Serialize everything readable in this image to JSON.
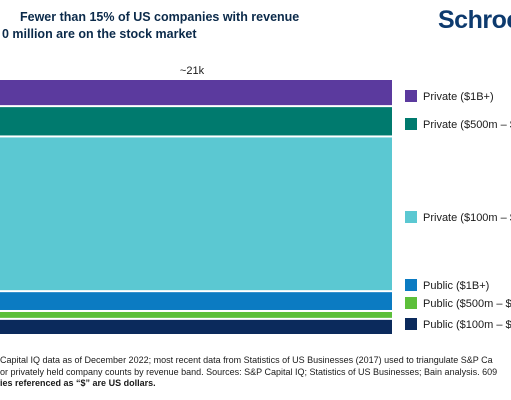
{
  "header": {
    "title_line1": "Fewer than 15% of US companies with revenue",
    "title_line2": "0 million are on the stock market",
    "logo_text": "Schroc"
  },
  "chart_data": {
    "type": "bar",
    "stacked": true,
    "total_label": "~21k",
    "series": [
      {
        "name": "Private ($1B+)",
        "share": 0.103,
        "color": "#5b3a9e"
      },
      {
        "name": "Private ($500m – $",
        "share": 0.116,
        "color": "#007a6e"
      },
      {
        "name": "Private ($100m – $",
        "share": 0.626,
        "color": "#5bc8d2"
      },
      {
        "name": "Public ($1B+)",
        "share": 0.073,
        "color": "#0b7bc2"
      },
      {
        "name": "Public ($500m – $1",
        "share": 0.024,
        "color": "#5cbf3a"
      },
      {
        "name": "Public ($100m – $4",
        "share": 0.058,
        "color": "#0b2a5c"
      }
    ]
  },
  "footnote": {
    "line1": "Capital IQ data as of December 2022; most recent data from Statistics of US Businesses (2017) used to triangulate S&P Ca",
    "line2": "or privately held company counts by revenue band. Sources: S&P Capital IQ; Statistics of US Businesses; Bain analysis. 609",
    "line3": "ies referenced as “$” are US dollars."
  }
}
